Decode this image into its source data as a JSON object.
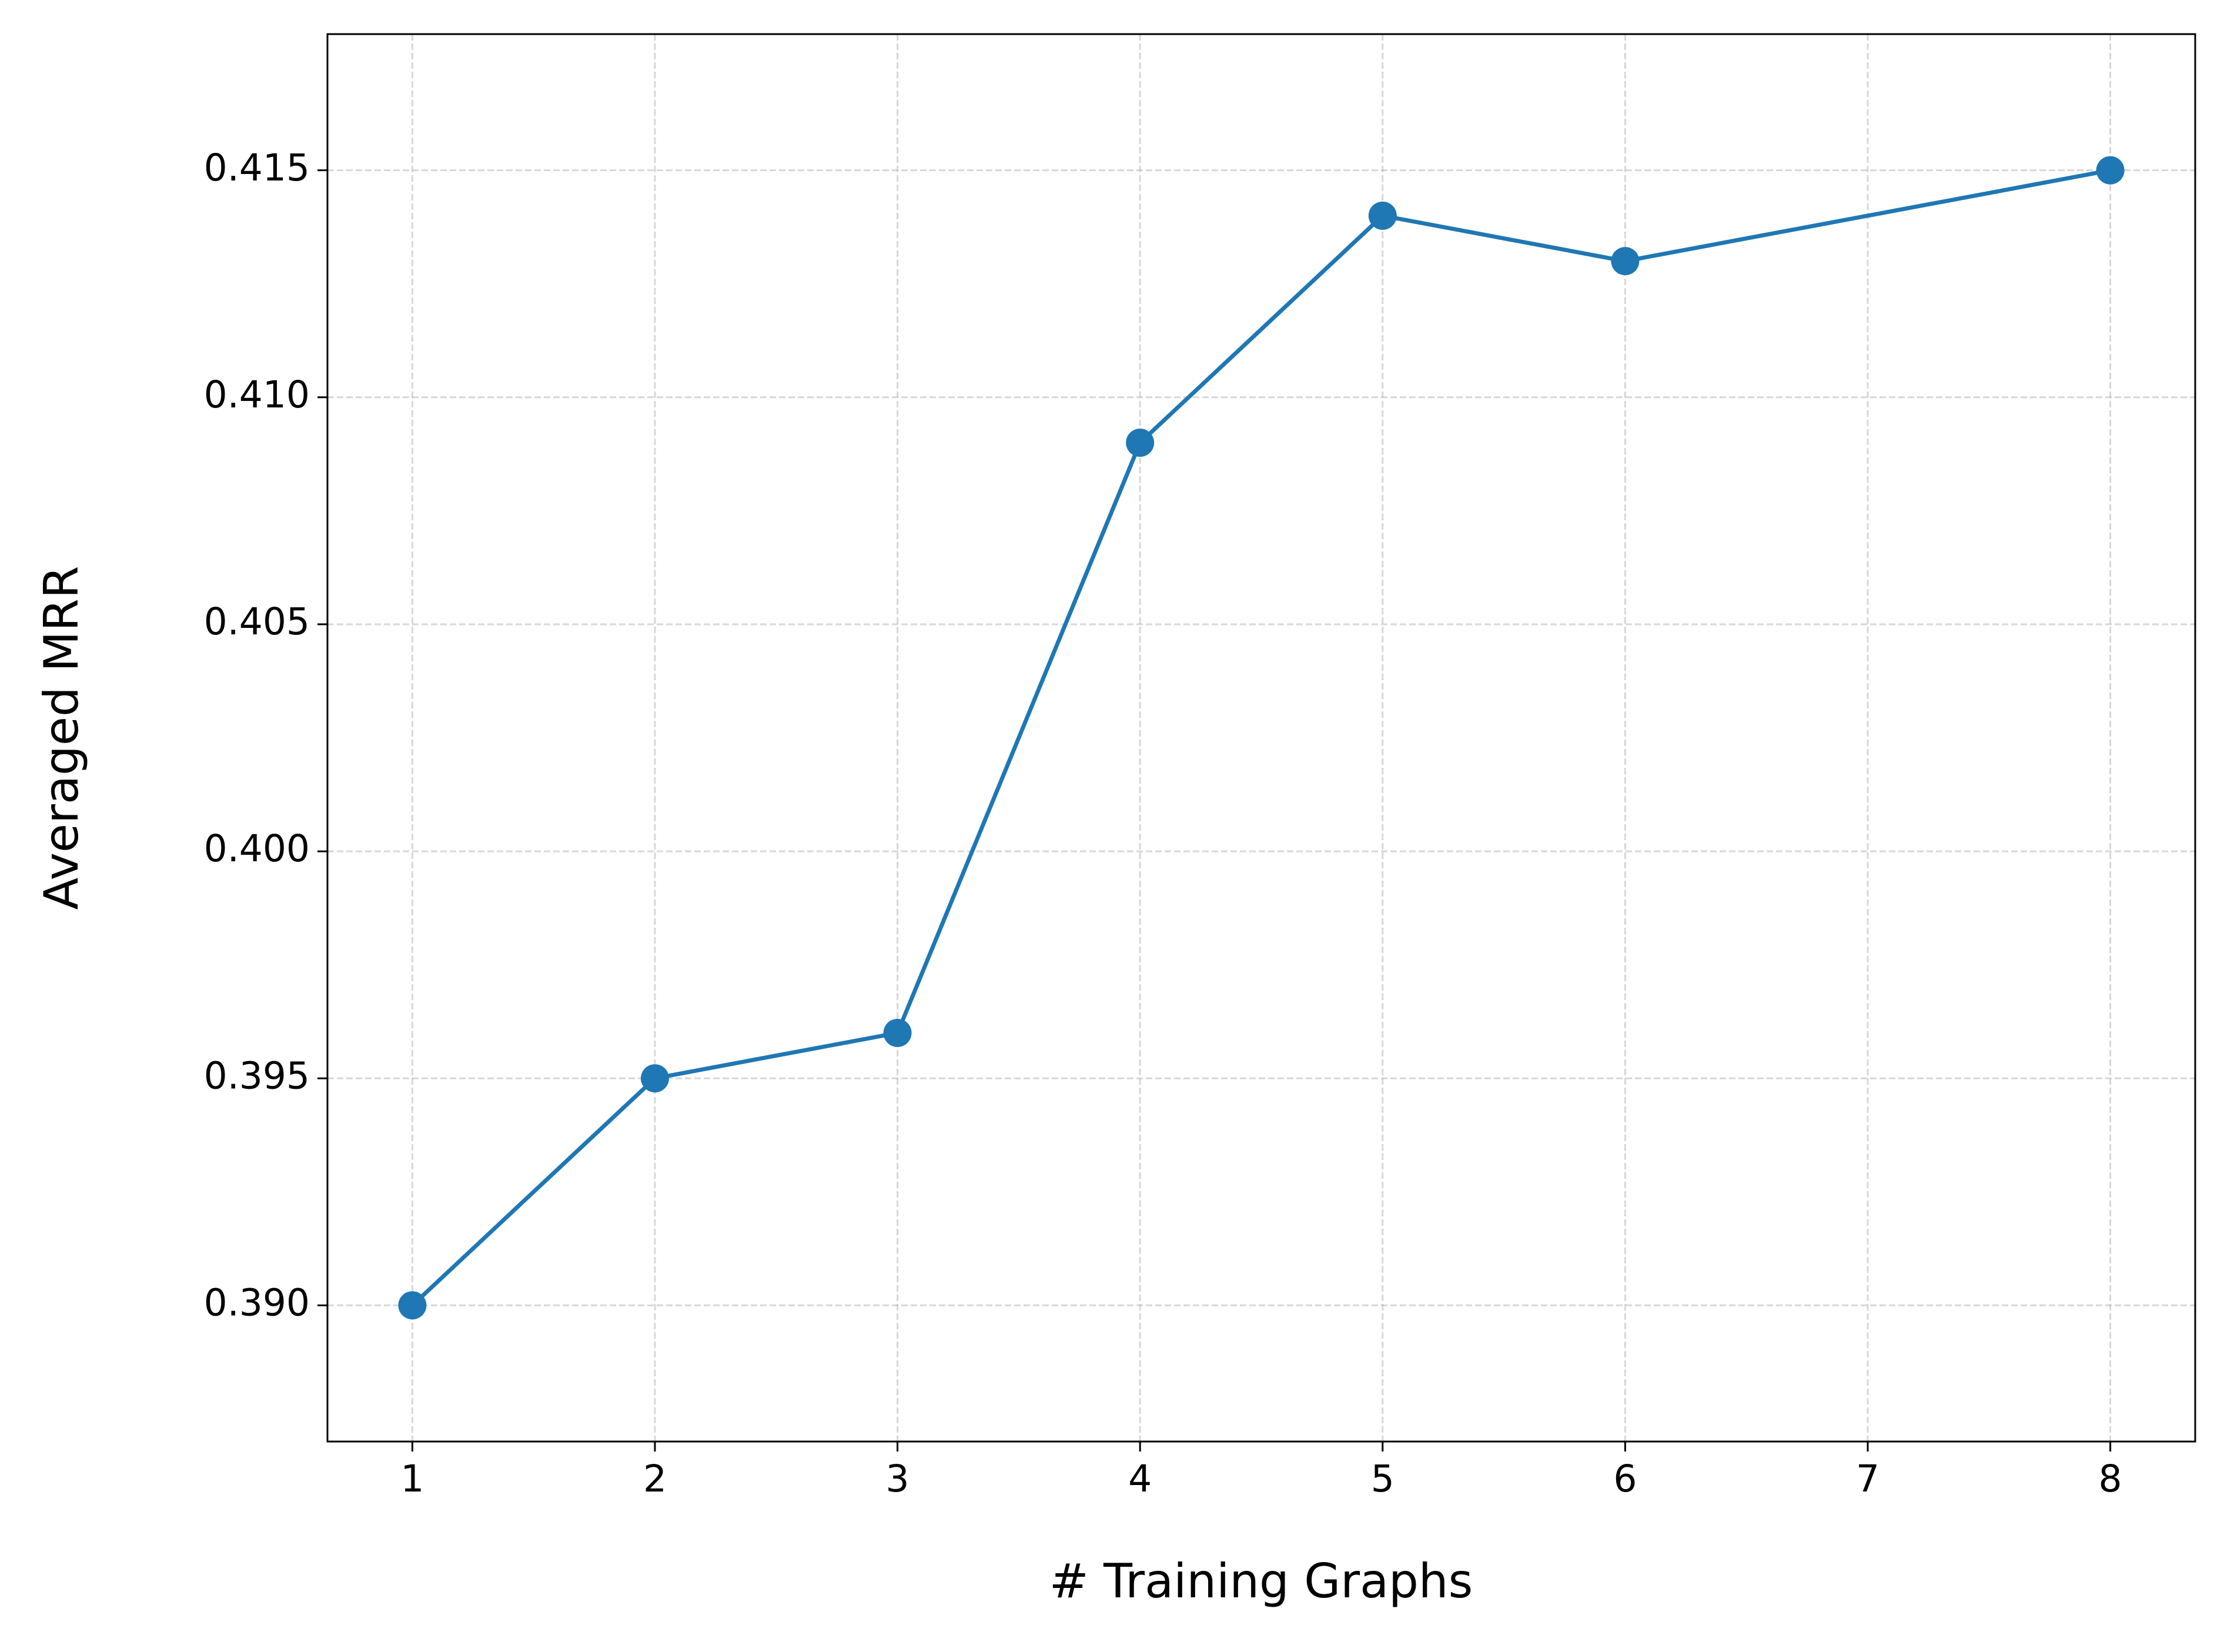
{
  "chart_data": {
    "type": "line",
    "x_label": "# Training Graphs",
    "y_label": "Averaged MRR",
    "x": [
      1,
      2,
      3,
      4,
      5,
      6,
      8
    ],
    "series": [
      {
        "name": "Averaged MRR",
        "color": "#1f77b4",
        "values": [
          0.39,
          0.395,
          0.396,
          0.409,
          0.414,
          0.413,
          0.415
        ]
      }
    ],
    "xlim": [
      0.65,
      8.35
    ],
    "xticks": [
      1,
      2,
      3,
      4,
      5,
      6,
      7,
      8
    ],
    "ylim": [
      0.387,
      0.418
    ],
    "yticks": [
      {
        "value": 0.39,
        "label": "0.390"
      },
      0.395,
      {
        "value": 0.4,
        "label": "0.400"
      },
      0.405,
      {
        "value": 0.41,
        "label": "0.410"
      },
      0.415
    ],
    "grid": true
  }
}
